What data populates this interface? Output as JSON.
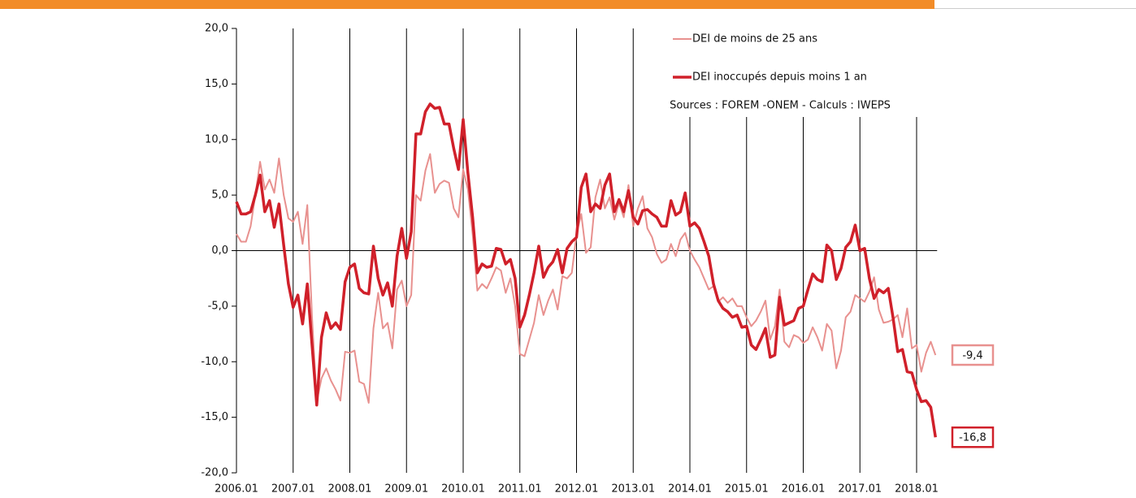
{
  "chart_data": {
    "type": "line",
    "source": "Sources : FOREM -ONEM - Calculs : IWEPS",
    "categories": [
      "2006.01",
      null,
      null,
      null,
      null,
      null,
      null,
      null,
      null,
      null,
      null,
      null,
      "2007.01",
      null,
      null,
      null,
      null,
      null,
      null,
      null,
      null,
      null,
      null,
      null,
      "2008.01",
      null,
      null,
      null,
      null,
      null,
      null,
      null,
      null,
      null,
      null,
      null,
      "2009.01",
      null,
      null,
      null,
      null,
      null,
      null,
      null,
      null,
      null,
      null,
      null,
      "2010.01",
      null,
      null,
      null,
      null,
      null,
      null,
      null,
      null,
      null,
      null,
      null,
      "2011.01",
      null,
      null,
      null,
      null,
      null,
      null,
      null,
      null,
      null,
      null,
      null,
      "2012.01",
      null,
      null,
      null,
      null,
      null,
      null,
      null,
      null,
      null,
      null,
      null,
      "2013.01",
      null,
      null,
      null,
      null,
      null,
      null,
      null,
      null,
      null,
      null,
      null,
      "2014.01",
      null,
      null,
      null,
      null,
      null,
      null,
      null,
      null,
      null,
      null,
      null,
      "2015.01",
      null,
      null,
      null,
      null,
      null,
      null,
      null,
      null,
      null,
      null,
      null,
      "2016.01",
      null,
      null,
      null,
      null,
      null,
      null,
      null,
      null,
      null,
      null,
      null,
      "2017.01",
      null,
      null,
      null,
      null,
      null,
      null,
      null,
      null,
      null,
      null,
      null,
      "2018.01",
      null,
      null,
      null,
      null
    ],
    "series": [
      {
        "name": "DEI de moins de 25 ans",
        "color": "#e8918f",
        "width": 2,
        "values": [
          1.5,
          0.8,
          0.8,
          2.2,
          5.0,
          8.0,
          5.5,
          6.4,
          5.2,
          8.3,
          5.0,
          2.9,
          2.6,
          3.5,
          0.6,
          4.1,
          -6.0,
          -13.6,
          -11.5,
          -10.6,
          -11.7,
          -12.5,
          -13.5,
          -9.1,
          -9.2,
          -9.0,
          -11.8,
          -12.0,
          -13.7,
          -7.0,
          -3.8,
          -7.0,
          -6.5,
          -8.8,
          -3.5,
          -2.7,
          -5.0,
          -4.0,
          5.0,
          4.5,
          7.2,
          8.7,
          5.2,
          6.0,
          6.3,
          6.1,
          3.8,
          3.0,
          7.3,
          5.5,
          1.5,
          -3.6,
          -3.0,
          -3.4,
          -2.5,
          -1.5,
          -1.8,
          -3.8,
          -2.5,
          -5.0,
          -9.3,
          -9.5,
          -8.0,
          -6.5,
          -4.0,
          -5.8,
          -4.5,
          -3.5,
          -5.3,
          -2.3,
          -2.5,
          -2.0,
          1.5,
          3.3,
          -0.2,
          0.3,
          4.8,
          6.4,
          3.8,
          4.8,
          2.8,
          4.3,
          3.0,
          5.9,
          2.2,
          3.8,
          4.9,
          2.0,
          1.2,
          -0.3,
          -1.1,
          -0.8,
          0.6,
          -0.5,
          1.0,
          1.6,
          0.0,
          -0.8,
          -1.5,
          -2.5,
          -3.5,
          -3.2,
          -4.6,
          -4.2,
          -4.7,
          -4.3,
          -5.0,
          -5.0,
          -6.0,
          -6.8,
          -6.3,
          -5.5,
          -4.5,
          -8.0,
          -6.8,
          -3.5,
          -8.2,
          -8.7,
          -7.6,
          -7.8,
          -8.3,
          -8.0,
          -6.9,
          -7.8,
          -9.0,
          -6.6,
          -7.2,
          -10.6,
          -9.0,
          -6.0,
          -5.5,
          -4.0,
          -4.3,
          -4.6,
          -3.7,
          -2.4,
          -5.3,
          -6.5,
          -6.4,
          -6.2,
          -5.8,
          -7.8,
          -5.2,
          -8.8,
          -8.5,
          -10.9,
          -9.2,
          -8.2,
          -9.4
        ],
        "value_labels": [
          null,
          null,
          null,
          null,
          null,
          null,
          null,
          null,
          null,
          null,
          null,
          null,
          null,
          null,
          null,
          null,
          null,
          null,
          null,
          null,
          null,
          null,
          null,
          null,
          null,
          null,
          null,
          null,
          null,
          null,
          null,
          null,
          null,
          null,
          null,
          null,
          null,
          null,
          null,
          null,
          null,
          null,
          null,
          null,
          null,
          null,
          null,
          null,
          null,
          null,
          null,
          null,
          null,
          null,
          null,
          null,
          null,
          null,
          null,
          null,
          null,
          null,
          null,
          null,
          null,
          null,
          null,
          null,
          null,
          null,
          null,
          null,
          null,
          null,
          null,
          null,
          null,
          null,
          null,
          null,
          null,
          null,
          null,
          null,
          null,
          null,
          null,
          null,
          null,
          null,
          null,
          null,
          null,
          null,
          null,
          null,
          null,
          null,
          null,
          null,
          null,
          null,
          null,
          null,
          null,
          null,
          null,
          null,
          null,
          null,
          null,
          null,
          null,
          null,
          null,
          null,
          null,
          null,
          null,
          null,
          null,
          null,
          null,
          null,
          null,
          null,
          null,
          null,
          null,
          null,
          null,
          null,
          null,
          null,
          null,
          null,
          null,
          null,
          null,
          null,
          null,
          null,
          null,
          null,
          null,
          null,
          null,
          null,
          "-9,4"
        ]
      },
      {
        "name": "DEI inoccupés depuis moins 1 an",
        "color": "#d0202a",
        "width": 3.5,
        "values": [
          4.4,
          3.3,
          3.3,
          3.5,
          5.0,
          6.8,
          3.5,
          4.5,
          2.1,
          4.2,
          0.5,
          -3.0,
          -5.1,
          -4.0,
          -6.6,
          -3.0,
          -8.5,
          -13.9,
          -7.8,
          -5.6,
          -7.0,
          -6.5,
          -7.1,
          -2.8,
          -1.5,
          -1.2,
          -3.4,
          -3.8,
          -3.9,
          0.4,
          -2.5,
          -4.0,
          -2.9,
          -5.0,
          -0.5,
          2.0,
          -0.7,
          1.7,
          10.5,
          10.5,
          12.5,
          13.2,
          12.8,
          12.9,
          11.4,
          11.4,
          9.2,
          7.3,
          11.8,
          7.0,
          3.0,
          -2.0,
          -1.2,
          -1.5,
          -1.4,
          0.2,
          0.1,
          -1.2,
          -0.8,
          -2.5,
          -6.9,
          -5.8,
          -4.0,
          -2.0,
          0.4,
          -2.4,
          -1.5,
          -1.0,
          0.1,
          -2.0,
          0.2,
          0.8,
          1.2,
          5.7,
          6.9,
          3.5,
          4.2,
          3.8,
          5.9,
          6.9,
          3.5,
          4.6,
          3.5,
          5.4,
          3.0,
          2.4,
          3.6,
          3.7,
          3.3,
          3.0,
          2.2,
          2.2,
          4.5,
          3.2,
          3.5,
          5.2,
          2.2,
          2.5,
          2.0,
          0.8,
          -0.5,
          -3.0,
          -4.5,
          -5.2,
          -5.5,
          -6.0,
          -5.8,
          -6.9,
          -6.8,
          -8.5,
          -8.9,
          -8.0,
          -7.0,
          -9.6,
          -9.4,
          -4.2,
          -6.7,
          -6.5,
          -6.3,
          -5.2,
          -5.0,
          -3.5,
          -2.1,
          -2.6,
          -2.8,
          0.5,
          0.0,
          -2.6,
          -1.6,
          0.3,
          0.8,
          2.3,
          0.0,
          0.2,
          -2.5,
          -4.3,
          -3.5,
          -3.8,
          -3.4,
          -6.0,
          -9.1,
          -8.9,
          -10.9,
          -11.0,
          -12.5,
          -13.6,
          -13.5,
          -14.1,
          -16.8
        ],
        "value_labels": [
          null,
          null,
          null,
          null,
          null,
          null,
          null,
          null,
          null,
          null,
          null,
          null,
          null,
          null,
          null,
          null,
          null,
          null,
          null,
          null,
          null,
          null,
          null,
          null,
          null,
          null,
          null,
          null,
          null,
          null,
          null,
          null,
          null,
          null,
          null,
          null,
          null,
          null,
          null,
          null,
          null,
          null,
          null,
          null,
          null,
          null,
          null,
          null,
          null,
          null,
          null,
          null,
          null,
          null,
          null,
          null,
          null,
          null,
          null,
          null,
          null,
          null,
          null,
          null,
          null,
          null,
          null,
          null,
          null,
          null,
          null,
          null,
          null,
          null,
          null,
          null,
          null,
          null,
          null,
          null,
          null,
          null,
          null,
          null,
          null,
          null,
          null,
          null,
          null,
          null,
          null,
          null,
          null,
          null,
          null,
          null,
          null,
          null,
          null,
          null,
          null,
          null,
          null,
          null,
          null,
          null,
          null,
          null,
          null,
          null,
          null,
          null,
          null,
          null,
          null,
          null,
          null,
          null,
          null,
          null,
          null,
          null,
          null,
          null,
          null,
          null,
          null,
          null,
          null,
          null,
          null,
          null,
          null,
          null,
          null,
          null,
          null,
          null,
          null,
          null,
          null,
          null,
          null,
          null,
          null,
          null,
          null,
          null,
          "-16,8"
        ]
      }
    ],
    "ylim": [
      -20,
      20
    ],
    "yticks": [
      {
        "value": -20,
        "label": "-20,0"
      },
      {
        "value": -15,
        "label": "-15,0"
      },
      {
        "value": -10,
        "label": "-10,0"
      },
      {
        "value": -5,
        "label": "-5,0"
      },
      {
        "value": 0,
        "label": "0,0"
      },
      {
        "value": 5,
        "label": "5,0"
      },
      {
        "value": 10,
        "label": "10,0"
      },
      {
        "value": 15,
        "label": "15,0"
      },
      {
        "value": 20,
        "label": "20,0"
      }
    ],
    "grid": "x",
    "legend": "top-right"
  }
}
